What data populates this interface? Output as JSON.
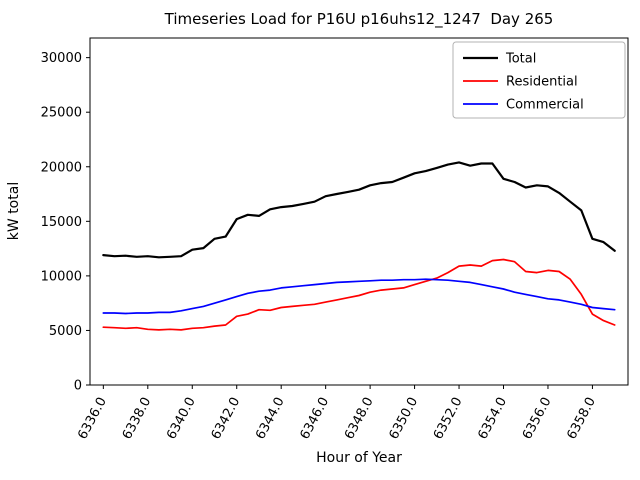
{
  "chart_data": {
    "type": "line",
    "title": "Timeseries Load for P16U p16uhs12_1247  Day 265",
    "xlabel": "Hour of Year",
    "ylabel": "kW total",
    "xlim": [
      6335.4,
      6359.6
    ],
    "ylim": [
      0,
      31800
    ],
    "xticks": [
      6336,
      6338,
      6340,
      6342,
      6344,
      6346,
      6348,
      6350,
      6352,
      6354,
      6356,
      6358
    ],
    "xtick_labels": [
      "6336.0",
      "6338.0",
      "6340.0",
      "6342.0",
      "6344.0",
      "6346.0",
      "6348.0",
      "6350.0",
      "6352.0",
      "6354.0",
      "6356.0",
      "6358.0"
    ],
    "yticks": [
      0,
      5000,
      10000,
      15000,
      20000,
      25000,
      30000
    ],
    "grid": false,
    "legend_position": "upper right",
    "x": [
      6336,
      6336.5,
      6337,
      6337.5,
      6338,
      6338.5,
      6339,
      6339.5,
      6340,
      6340.5,
      6341,
      6341.5,
      6342,
      6342.5,
      6343,
      6343.5,
      6344,
      6344.5,
      6345,
      6345.5,
      6346,
      6346.5,
      6347,
      6347.5,
      6348,
      6348.5,
      6349,
      6349.5,
      6350,
      6350.5,
      6351,
      6351.5,
      6352,
      6352.5,
      6353,
      6353.5,
      6354,
      6354.5,
      6355,
      6355.5,
      6356,
      6356.5,
      6357,
      6357.5,
      6358,
      6358.5,
      6359
    ],
    "series": [
      {
        "name": "Total",
        "color": "#000000",
        "linewidth": 2.2,
        "values": [
          11900,
          11800,
          11850,
          11750,
          11800,
          11700,
          11750,
          11800,
          12400,
          12550,
          13400,
          13600,
          15200,
          15600,
          15500,
          16100,
          16300,
          16400,
          16600,
          16800,
          17300,
          17500,
          17700,
          17900,
          18300,
          18500,
          18600,
          19000,
          19400,
          19600,
          19900,
          20200,
          20400,
          20100,
          20300,
          20300,
          18900,
          18600,
          18100,
          18300,
          18200,
          17600,
          16800,
          16000,
          13400,
          13100,
          12300
        ]
      },
      {
        "name": "Residential",
        "color": "#ff0000",
        "linewidth": 1.7,
        "values": [
          5300,
          5250,
          5200,
          5250,
          5100,
          5050,
          5100,
          5050,
          5200,
          5250,
          5400,
          5500,
          6300,
          6500,
          6900,
          6850,
          7100,
          7200,
          7300,
          7400,
          7600,
          7800,
          8000,
          8200,
          8500,
          8700,
          8800,
          8900,
          9200,
          9500,
          9800,
          10300,
          10900,
          11000,
          10900,
          11400,
          11500,
          11300,
          10400,
          10300,
          10500,
          10400,
          9700,
          8300,
          6500,
          5900,
          5500
        ]
      },
      {
        "name": "Commercial",
        "color": "#0000ff",
        "linewidth": 1.7,
        "values": [
          6600,
          6600,
          6550,
          6600,
          6600,
          6650,
          6650,
          6800,
          7000,
          7200,
          7500,
          7800,
          8100,
          8400,
          8600,
          8700,
          8900,
          9000,
          9100,
          9200,
          9300,
          9400,
          9450,
          9500,
          9550,
          9600,
          9600,
          9650,
          9650,
          9700,
          9650,
          9600,
          9500,
          9400,
          9200,
          9000,
          8800,
          8500,
          8300,
          8100,
          7900,
          7800,
          7600,
          7400,
          7100,
          7000,
          6900
        ]
      }
    ]
  }
}
